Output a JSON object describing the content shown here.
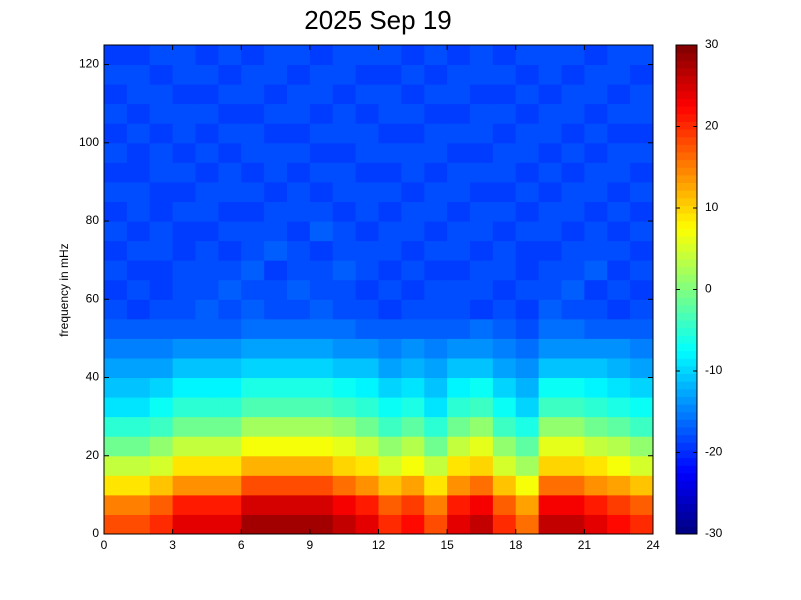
{
  "chart_data": {
    "type": "heatmap",
    "title": "2025 Sep 19",
    "y_label": "frequency in mHz",
    "x_edges": [
      0,
      1,
      2,
      3,
      4,
      5,
      6,
      7,
      8,
      9,
      10,
      11,
      12,
      13,
      14,
      15,
      16,
      17,
      18,
      19,
      20,
      21,
      22,
      23,
      24
    ],
    "y_edges": [
      0,
      5,
      10,
      15,
      20,
      25,
      30,
      35,
      40,
      45,
      50,
      55,
      60,
      65,
      70,
      75,
      80,
      85,
      90,
      95,
      100,
      105,
      110,
      115,
      120,
      125
    ],
    "xlim": [
      0,
      24
    ],
    "xticks": [
      0,
      3,
      6,
      9,
      12,
      15,
      18,
      21,
      24
    ],
    "ylim": [
      0,
      125
    ],
    "yticks": [
      0,
      20,
      40,
      60,
      80,
      100,
      120
    ],
    "clim": [
      -30,
      30
    ],
    "cticks": [
      -30,
      -20,
      -10,
      0,
      10,
      20,
      30
    ],
    "colormap": "jet",
    "values": [
      [
        18,
        18,
        20,
        24,
        24,
        24,
        28,
        28,
        28,
        28,
        26,
        24,
        20,
        22,
        18,
        24,
        26,
        20,
        16,
        26,
        26,
        24,
        22,
        20
      ],
      [
        15,
        15,
        17,
        21,
        21,
        21,
        25,
        25,
        25,
        25,
        23,
        21,
        17,
        19,
        15,
        21,
        23,
        17,
        13,
        23,
        23,
        21,
        19,
        17
      ],
      [
        9,
        9,
        11,
        14,
        14,
        14,
        18,
        18,
        18,
        18,
        16,
        14,
        11,
        13,
        9,
        14,
        16,
        11,
        7,
        16,
        16,
        14,
        13,
        11
      ],
      [
        4,
        4,
        5,
        9,
        9,
        9,
        12,
        12,
        12,
        12,
        10,
        9,
        5,
        7,
        4,
        9,
        10,
        5,
        2,
        10,
        10,
        9,
        7,
        5
      ],
      [
        -1,
        -1,
        1,
        4,
        4,
        4,
        7,
        7,
        7,
        7,
        6,
        4,
        1,
        3,
        -1,
        4,
        6,
        1,
        -2,
        6,
        6,
        4,
        3,
        1
      ],
      [
        -5,
        -5,
        -4,
        -1,
        -1,
        -1,
        2,
        2,
        2,
        2,
        1,
        -1,
        -4,
        -2,
        -5,
        -1,
        1,
        -4,
        -6,
        1,
        1,
        -1,
        -2,
        -4
      ],
      [
        -9,
        -9,
        -7,
        -5,
        -5,
        -5,
        -3,
        -3,
        -3,
        -3,
        -4,
        -5,
        -7,
        -6,
        -9,
        -5,
        -4,
        -7,
        -10,
        -4,
        -4,
        -5,
        -6,
        -7
      ],
      [
        -11,
        -11,
        -10,
        -8,
        -8,
        -8,
        -6,
        -6,
        -6,
        -6,
        -7,
        -8,
        -10,
        -9,
        -11,
        -8,
        -7,
        -10,
        -12,
        -7,
        -7,
        -8,
        -9,
        -10
      ],
      [
        -13,
        -13,
        -13,
        -11,
        -11,
        -11,
        -10,
        -10,
        -10,
        -10,
        -11,
        -11,
        -13,
        -12,
        -13,
        -11,
        -11,
        -13,
        -14,
        -11,
        -11,
        -11,
        -12,
        -13
      ],
      [
        -15,
        -15,
        -15,
        -14,
        -14,
        -14,
        -13,
        -13,
        -13,
        -13,
        -14,
        -14,
        -15,
        -14,
        -15,
        -14,
        -14,
        -15,
        -16,
        -14,
        -14,
        -14,
        -14,
        -15
      ],
      [
        -17,
        -17,
        -17,
        -17,
        -17,
        -17,
        -16,
        -16,
        -16,
        -16,
        -16,
        -17,
        -17,
        -17,
        -17,
        -17,
        -16,
        -17,
        -18,
        -16,
        -16,
        -17,
        -17,
        -17
      ],
      [
        -18,
        -19,
        -18,
        -18,
        -17,
        -18,
        -17,
        -18,
        -18,
        -17,
        -18,
        -18,
        -19,
        -18,
        -18,
        -18,
        -19,
        -18,
        -19,
        -17,
        -18,
        -18,
        -19,
        -18
      ],
      [
        -19,
        -18,
        -19,
        -18,
        -18,
        -17,
        -18,
        -18,
        -17,
        -18,
        -18,
        -19,
        -18,
        -19,
        -18,
        -18,
        -18,
        -19,
        -18,
        -18,
        -17,
        -19,
        -18,
        -19
      ],
      [
        -18,
        -19,
        -19,
        -18,
        -18,
        -18,
        -17,
        -19,
        -18,
        -18,
        -17,
        -18,
        -19,
        -18,
        -19,
        -19,
        -18,
        -18,
        -19,
        -18,
        -18,
        -17,
        -19,
        -18
      ],
      [
        -19,
        -18,
        -18,
        -19,
        -18,
        -19,
        -18,
        -17,
        -18,
        -19,
        -18,
        -18,
        -18,
        -19,
        -18,
        -18,
        -19,
        -18,
        -19,
        -19,
        -18,
        -18,
        -18,
        -19
      ],
      [
        -18,
        -19,
        -18,
        -19,
        -19,
        -18,
        -18,
        -18,
        -19,
        -17,
        -18,
        -19,
        -18,
        -18,
        -19,
        -18,
        -18,
        -19,
        -18,
        -18,
        -19,
        -18,
        -19,
        -18
      ],
      [
        -19,
        -18,
        -19,
        -18,
        -18,
        -19,
        -19,
        -18,
        -18,
        -18,
        -19,
        -18,
        -19,
        -18,
        -18,
        -19,
        -18,
        -18,
        -19,
        -18,
        -18,
        -19,
        -18,
        -19
      ],
      [
        -18,
        -18,
        -19,
        -19,
        -18,
        -18,
        -18,
        -19,
        -18,
        -19,
        -18,
        -18,
        -18,
        -19,
        -18,
        -18,
        -19,
        -19,
        -18,
        -19,
        -18,
        -18,
        -19,
        -18
      ],
      [
        -19,
        -19,
        -18,
        -18,
        -19,
        -18,
        -19,
        -18,
        -19,
        -18,
        -18,
        -19,
        -19,
        -18,
        -19,
        -18,
        -18,
        -18,
        -19,
        -18,
        -19,
        -18,
        -18,
        -19
      ],
      [
        -18,
        -19,
        -18,
        -19,
        -18,
        -19,
        -18,
        -18,
        -18,
        -19,
        -19,
        -18,
        -18,
        -18,
        -18,
        -19,
        -19,
        -18,
        -18,
        -19,
        -18,
        -19,
        -18,
        -18
      ],
      [
        -19,
        -18,
        -19,
        -18,
        -19,
        -18,
        -18,
        -19,
        -19,
        -18,
        -18,
        -18,
        -19,
        -19,
        -18,
        -18,
        -18,
        -19,
        -18,
        -18,
        -19,
        -18,
        -19,
        -19
      ],
      [
        -18,
        -19,
        -18,
        -18,
        -18,
        -19,
        -19,
        -18,
        -18,
        -19,
        -18,
        -19,
        -18,
        -18,
        -19,
        -19,
        -18,
        -18,
        -19,
        -18,
        -18,
        -19,
        -18,
        -18
      ],
      [
        -19,
        -18,
        -18,
        -19,
        -19,
        -18,
        -18,
        -19,
        -18,
        -18,
        -19,
        -18,
        -18,
        -19,
        -18,
        -18,
        -19,
        -19,
        -18,
        -19,
        -18,
        -18,
        -19,
        -18
      ],
      [
        -18,
        -18,
        -19,
        -18,
        -18,
        -19,
        -18,
        -18,
        -19,
        -18,
        -18,
        -19,
        -19,
        -18,
        -19,
        -18,
        -18,
        -18,
        -19,
        -18,
        -19,
        -18,
        -18,
        -19
      ],
      [
        -19,
        -19,
        -18,
        -18,
        -19,
        -18,
        -19,
        -18,
        -18,
        -19,
        -18,
        -18,
        -18,
        -19,
        -18,
        -19,
        -18,
        -19,
        -18,
        -18,
        -18,
        -19,
        -18,
        -18
      ]
    ]
  }
}
